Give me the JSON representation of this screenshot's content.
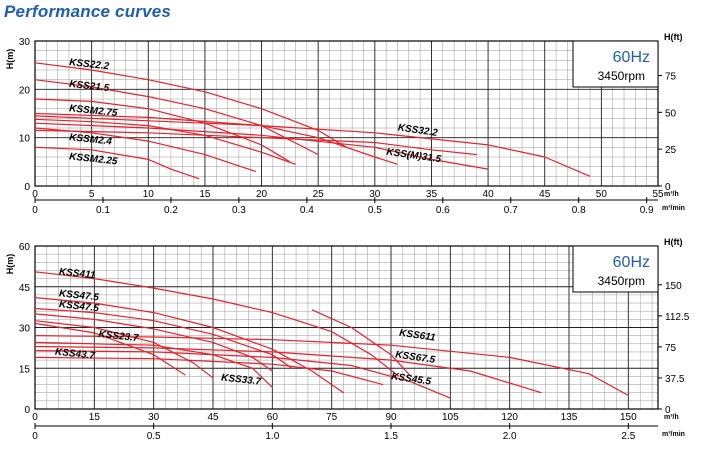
{
  "title": "Performance curves",
  "colors": {
    "curve": "#e8202a",
    "grid": "#222222",
    "title": "#1f5fae",
    "frequency": "#1f5fae"
  },
  "chart_data": [
    {
      "type": "line",
      "frequency": "60Hz",
      "speed": "3450rpm",
      "ylabel": "H(m)",
      "ylabel_right": "H(ft)",
      "xunit_top": "m³/h",
      "xunit_bottom": "m³/min",
      "xlim": [
        0,
        55
      ],
      "ylim": [
        0,
        30
      ],
      "xticks": [
        "0",
        "5",
        "10",
        "15",
        "20",
        "25",
        "30",
        "35",
        "40",
        "45",
        "50",
        "55"
      ],
      "xticks_min": [
        "0",
        "0.1",
        "0.2",
        "0.3",
        "0.4",
        "0.5",
        "0.6",
        "0.7",
        "0.8",
        "0.9"
      ],
      "xticks_min_values": [
        0,
        0.1,
        0.2,
        0.3,
        0.4,
        0.5,
        0.6,
        0.7,
        0.8,
        0.9
      ],
      "yticks": [
        "0",
        "10",
        "20",
        "30"
      ],
      "yticks_right": [
        "0",
        "25",
        "50",
        "75"
      ],
      "yticks_right_values": [
        0,
        25,
        50,
        75
      ],
      "series": [
        {
          "name": "KSS22.2",
          "points": [
            [
              0,
              25.5
            ],
            [
              5,
              24
            ],
            [
              10,
              22
            ],
            [
              15,
              19.5
            ],
            [
              20,
              16
            ],
            [
              25,
              11.5
            ],
            [
              27.5,
              8
            ]
          ]
        },
        {
          "name": "KSS21.5",
          "points": [
            [
              0,
              22
            ],
            [
              5,
              20.5
            ],
            [
              10,
              18.5
            ],
            [
              15,
              16
            ],
            [
              20,
              12.5
            ],
            [
              25,
              6.5
            ]
          ]
        },
        {
          "name": "KSSM2.75",
          "points": [
            [
              0,
              18
            ],
            [
              5,
              17.5
            ],
            [
              10,
              16
            ],
            [
              15,
              13
            ],
            [
              20,
              8.5
            ],
            [
              22.5,
              5
            ]
          ]
        },
        {
          "name": "KSSM2.4",
          "points": [
            [
              0,
              12
            ],
            [
              5,
              11
            ],
            [
              10,
              9.3
            ],
            [
              15,
              6.5
            ],
            [
              19.5,
              3
            ]
          ]
        },
        {
          "name": "KSSM2.25",
          "points": [
            [
              0,
              8
            ],
            [
              5,
              7.5
            ],
            [
              10,
              5.5
            ],
            [
              12,
              3.5
            ],
            [
              14.5,
              1.5
            ]
          ]
        },
        {
          "name": "KSS32.2",
          "points": [
            [
              0,
              14.5
            ],
            [
              10,
              13.5
            ],
            [
              20,
              12.5
            ],
            [
              30,
              11
            ],
            [
              40,
              8.5
            ],
            [
              45,
              6
            ],
            [
              49,
              2
            ]
          ]
        },
        {
          "name": "KSS(M)31.5",
          "points": [
            [
              0,
              13
            ],
            [
              10,
              12
            ],
            [
              20,
              10.5
            ],
            [
              30,
              8
            ],
            [
              35,
              5.5
            ],
            [
              40,
              3.5
            ]
          ]
        },
        {
          "name": "",
          "points": [
            [
              0,
              15
            ],
            [
              10,
              14.2
            ],
            [
              20,
              12.5
            ],
            [
              25,
              10
            ],
            [
              30,
              6
            ],
            [
              32,
              4.5
            ]
          ]
        },
        {
          "name": "",
          "points": [
            [
              0,
              13.8
            ],
            [
              5,
              13.3
            ],
            [
              10,
              12.5
            ],
            [
              15,
              10.5
            ],
            [
              20,
              7
            ],
            [
              23,
              4.5
            ]
          ]
        },
        {
          "name": "",
          "points": [
            [
              0,
              11.5
            ],
            [
              10,
              11
            ],
            [
              20,
              10
            ],
            [
              30,
              9
            ],
            [
              35,
              7.5
            ],
            [
              39,
              6.5
            ]
          ]
        }
      ],
      "labels": [
        {
          "text": "KSS22.2",
          "at": [
            3,
            25
          ]
        },
        {
          "text": "KSS21.5",
          "at": [
            3,
            20.5
          ]
        },
        {
          "text": "KSSM2.75",
          "at": [
            3,
            15.5
          ]
        },
        {
          "text": "KSSM2.4",
          "at": [
            3,
            9.5
          ]
        },
        {
          "text": "KSSM2.25",
          "at": [
            3,
            5.5
          ]
        },
        {
          "text": "KSS32.2",
          "at": [
            32,
            11.5
          ]
        },
        {
          "text": "KSS(M)31.5",
          "at": [
            31,
            6.5
          ]
        }
      ]
    },
    {
      "type": "line",
      "frequency": "60Hz",
      "speed": "3450rpm",
      "ylabel": "H(m)",
      "ylabel_right": "H(ft)",
      "xunit_top": "m³/h",
      "xunit_bottom": "m³/min",
      "xlim": [
        0,
        157.5
      ],
      "ylim": [
        0,
        60
      ],
      "xticks": [
        "0",
        "15",
        "30",
        "45",
        "60",
        "75",
        "90",
        "105",
        "120",
        "135",
        "150"
      ],
      "xticks_min": [
        "0",
        "0.5",
        "1.0",
        "1.5",
        "2.0",
        "2.5"
      ],
      "xticks_min_values": [
        0,
        0.5,
        1.0,
        1.5,
        2.0,
        2.5
      ],
      "yticks": [
        "0",
        "15",
        "30",
        "45",
        "60"
      ],
      "yticks_right": [
        "0",
        "37.5",
        "75",
        "112.5",
        "150"
      ],
      "yticks_right_values": [
        0,
        37.5,
        75,
        112.5,
        150
      ],
      "series": [
        {
          "name": "KSS411",
          "points": [
            [
              0,
              50.5
            ],
            [
              15,
              48
            ],
            [
              30,
              44.5
            ],
            [
              45,
              40.5
            ],
            [
              60,
              35.5
            ],
            [
              75,
              28.5
            ],
            [
              85,
              20
            ],
            [
              92,
              12
            ]
          ]
        },
        {
          "name": "KSS47.5",
          "points": [
            [
              0,
              41
            ],
            [
              15,
              39
            ],
            [
              30,
              35.5
            ],
            [
              45,
              30
            ],
            [
              60,
              22
            ],
            [
              70,
              14
            ],
            [
              78,
              6
            ]
          ]
        },
        {
          "name": "KSS47.5",
          "points": [
            [
              0,
              37
            ],
            [
              15,
              35.5
            ],
            [
              30,
              32.5
            ],
            [
              45,
              27.5
            ],
            [
              60,
              20
            ],
            [
              65,
              15
            ]
          ]
        },
        {
          "name": "",
          "points": [
            [
              0,
              35
            ],
            [
              15,
              33
            ],
            [
              30,
              29.5
            ],
            [
              45,
              24.5
            ],
            [
              55,
              19
            ],
            [
              60,
              14
            ]
          ]
        },
        {
          "name": "KSS23.7",
          "points": [
            [
              0,
              32.5
            ],
            [
              15,
              30
            ],
            [
              30,
              24.5
            ],
            [
              40,
              17
            ],
            [
              45,
              11.5
            ]
          ]
        },
        {
          "name": "",
          "points": [
            [
              0,
              31.5
            ],
            [
              15,
              28
            ],
            [
              30,
              20
            ],
            [
              38,
              12.5
            ]
          ]
        },
        {
          "name": "KSS43.7",
          "points": [
            [
              0,
              19
            ],
            [
              30,
              18.5
            ],
            [
              60,
              16.5
            ],
            [
              75,
              14
            ],
            [
              88,
              9
            ]
          ]
        },
        {
          "name": "KSS33.7",
          "points": [
            [
              0,
              24.5
            ],
            [
              30,
              23.5
            ],
            [
              45,
              20
            ],
            [
              55,
              15
            ],
            [
              60,
              8
            ]
          ]
        },
        {
          "name": "KSS611",
          "points": [
            [
              0,
              27
            ],
            [
              30,
              26.5
            ],
            [
              60,
              25.5
            ],
            [
              90,
              23.5
            ],
            [
              120,
              19
            ],
            [
              140,
              13
            ],
            [
              150,
              5
            ]
          ]
        },
        {
          "name": "KSS67.5",
          "points": [
            [
              0,
              23
            ],
            [
              30,
              22.5
            ],
            [
              60,
              21
            ],
            [
              90,
              18
            ],
            [
              110,
              14
            ],
            [
              128,
              6
            ]
          ]
        },
        {
          "name": "KSS45.5",
          "points": [
            [
              0,
              21.5
            ],
            [
              30,
              21
            ],
            [
              60,
              19
            ],
            [
              80,
              16
            ],
            [
              95,
              10
            ],
            [
              105,
              4
            ]
          ]
        },
        {
          "name": "",
          "points": [
            [
              70,
              36.5
            ],
            [
              80,
              30
            ],
            [
              90,
              20
            ],
            [
              95,
              12
            ]
          ]
        }
      ],
      "labels": [
        {
          "text": "KSS411",
          "at": [
            6,
            49.5
          ]
        },
        {
          "text": "KSS47.5",
          "at": [
            6,
            41.5
          ]
        },
        {
          "text": "KSS47.5",
          "at": [
            6,
            37.5
          ]
        },
        {
          "text": "KSS23.7",
          "at": [
            16,
            26.5
          ]
        },
        {
          "text": "KSS43.7",
          "at": [
            5,
            20
          ]
        },
        {
          "text": "KSS33.7",
          "at": [
            47,
            10.5
          ]
        },
        {
          "text": "KSS611",
          "at": [
            92,
            27
          ]
        },
        {
          "text": "KSS67.5",
          "at": [
            91,
            19
          ]
        },
        {
          "text": "KSS45.5",
          "at": [
            90,
            11
          ]
        }
      ]
    }
  ]
}
